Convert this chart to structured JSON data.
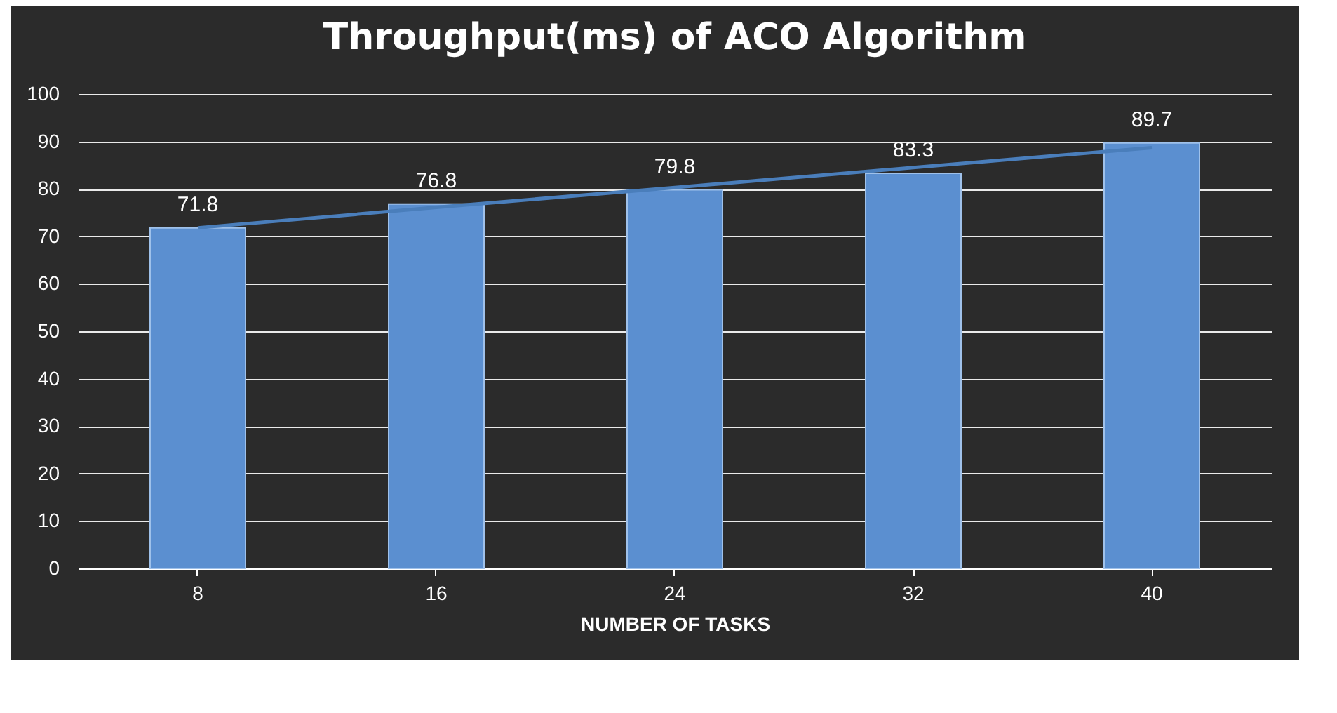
{
  "chart_data": {
    "type": "bar",
    "title": "Throughput(ms) of ACO Algorithm",
    "xlabel": "NUMBER OF TASKS",
    "categories": [
      "8",
      "16",
      "24",
      "32",
      "40"
    ],
    "series": [
      {
        "color": "#5b8fd0",
        "values": [
          71.8,
          76.8,
          79.8,
          83.3,
          89.7
        ],
        "value_labels": [
          "71.8",
          "76.8",
          "79.8",
          "83.3",
          "89.7"
        ]
      },
      {
        "type": "line",
        "color": "#4a7ebb",
        "values": [
          71.8,
          76.1,
          80.3,
          84.5,
          88.7
        ]
      }
    ],
    "ylim": [
      0,
      100
    ],
    "yticks": [
      0,
      10,
      20,
      30,
      40,
      50,
      60,
      70,
      80,
      90,
      100
    ],
    "grid": "y"
  }
}
